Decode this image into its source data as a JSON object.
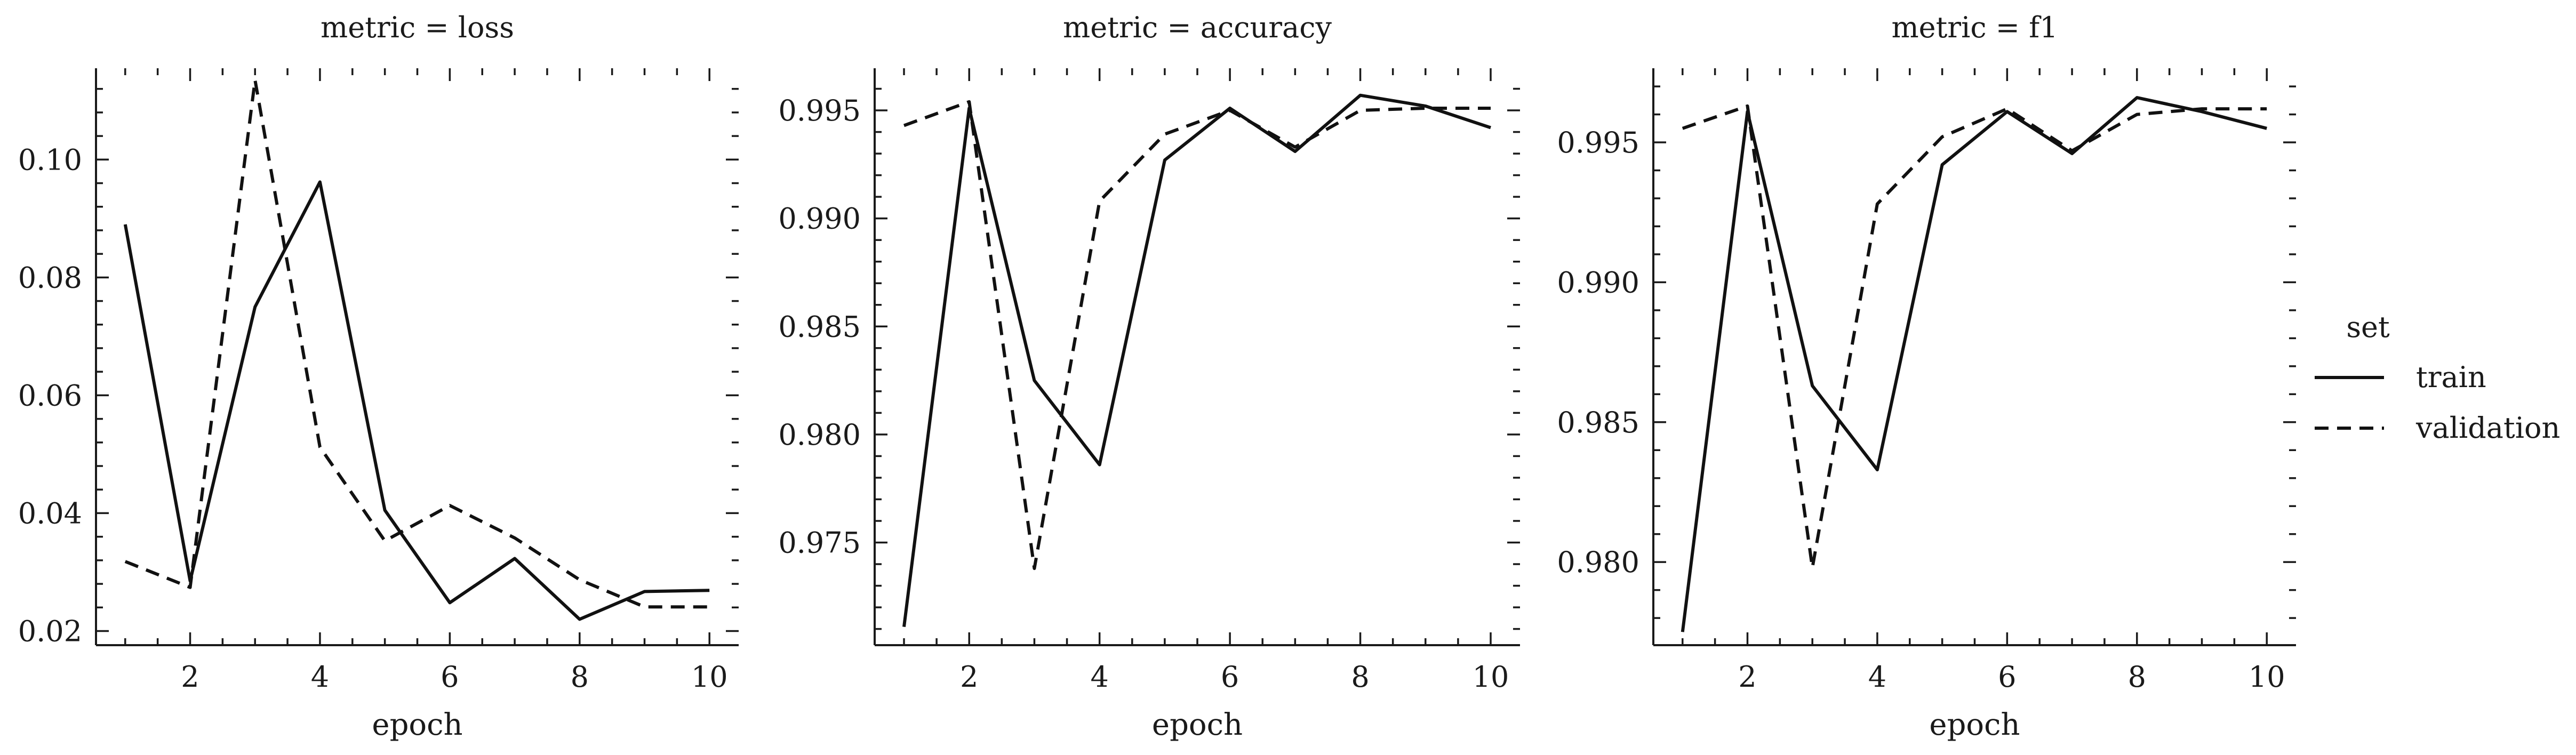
{
  "legend": {
    "title": "set",
    "items": [
      {
        "label": "train",
        "style": "solid"
      },
      {
        "label": "validation",
        "style": "dashed"
      }
    ]
  },
  "colors": {
    "line": "#111111",
    "background": "#ffffff"
  },
  "chart_data": [
    {
      "type": "line",
      "title": "metric = loss",
      "xlabel": "epoch",
      "ylabel": "",
      "x": [
        1,
        2,
        3,
        4,
        5,
        6,
        7,
        8,
        9,
        10
      ],
      "xticks": [
        2,
        4,
        6,
        8,
        10
      ],
      "xlim": [
        0.55,
        10.45
      ],
      "ylim": [
        0.0176,
        0.1155
      ],
      "yticks": [
        0.02,
        0.04,
        0.06,
        0.08,
        0.1
      ],
      "ytick_labels": [
        "0.02",
        "0.04",
        "0.06",
        "0.08",
        "0.10"
      ],
      "grid": false,
      "series": [
        {
          "name": "train",
          "style": "solid",
          "values": [
            0.089,
            0.0285,
            0.075,
            0.0962,
            0.0405,
            0.0248,
            0.0323,
            0.022,
            0.0267,
            0.0269
          ]
        },
        {
          "name": "validation",
          "style": "dashed",
          "values": [
            0.0318,
            0.0274,
            0.1135,
            0.0512,
            0.0353,
            0.0413,
            0.0358,
            0.0287,
            0.0241,
            0.0241
          ]
        }
      ]
    },
    {
      "type": "line",
      "title": "metric = accuracy",
      "xlabel": "epoch",
      "ylabel": "",
      "x": [
        1,
        2,
        3,
        4,
        5,
        6,
        7,
        8,
        9,
        10
      ],
      "xticks": [
        2,
        4,
        6,
        8,
        10
      ],
      "xlim": [
        0.55,
        10.45
      ],
      "ylim": [
        0.97025,
        0.99695
      ],
      "yticks": [
        0.975,
        0.98,
        0.985,
        0.99,
        0.995
      ],
      "ytick_labels": [
        "0.975",
        "0.980",
        "0.985",
        "0.990",
        "0.995"
      ],
      "grid": false,
      "series": [
        {
          "name": "train",
          "style": "solid",
          "values": [
            0.9711,
            0.9951,
            0.9825,
            0.9786,
            0.9927,
            0.9951,
            0.9931,
            0.9957,
            0.9952,
            0.9942
          ]
        },
        {
          "name": "validation",
          "style": "dashed",
          "values": [
            0.9943,
            0.9954,
            0.9738,
            0.9908,
            0.9939,
            0.995,
            0.9933,
            0.995,
            0.9951,
            0.9951
          ]
        }
      ]
    },
    {
      "type": "line",
      "title": "metric = f1",
      "xlabel": "epoch",
      "ylabel": "",
      "x": [
        1,
        2,
        3,
        4,
        5,
        6,
        7,
        8,
        9,
        10
      ],
      "xticks": [
        2,
        4,
        6,
        8,
        10
      ],
      "xlim": [
        0.55,
        10.45
      ],
      "ylim": [
        0.97703,
        0.99765
      ],
      "yticks": [
        0.98,
        0.985,
        0.99,
        0.995
      ],
      "ytick_labels": [
        "0.980",
        "0.985",
        "0.990",
        "0.995"
      ],
      "grid": false,
      "series": [
        {
          "name": "train",
          "style": "solid",
          "values": [
            0.9775,
            0.9961,
            0.9863,
            0.9833,
            0.9942,
            0.9961,
            0.9946,
            0.9966,
            0.9961,
            0.9955
          ]
        },
        {
          "name": "validation",
          "style": "dashed",
          "values": [
            0.9955,
            0.9963,
            0.9798,
            0.9928,
            0.9952,
            0.9962,
            0.9947,
            0.996,
            0.9962,
            0.9962
          ]
        }
      ]
    }
  ]
}
